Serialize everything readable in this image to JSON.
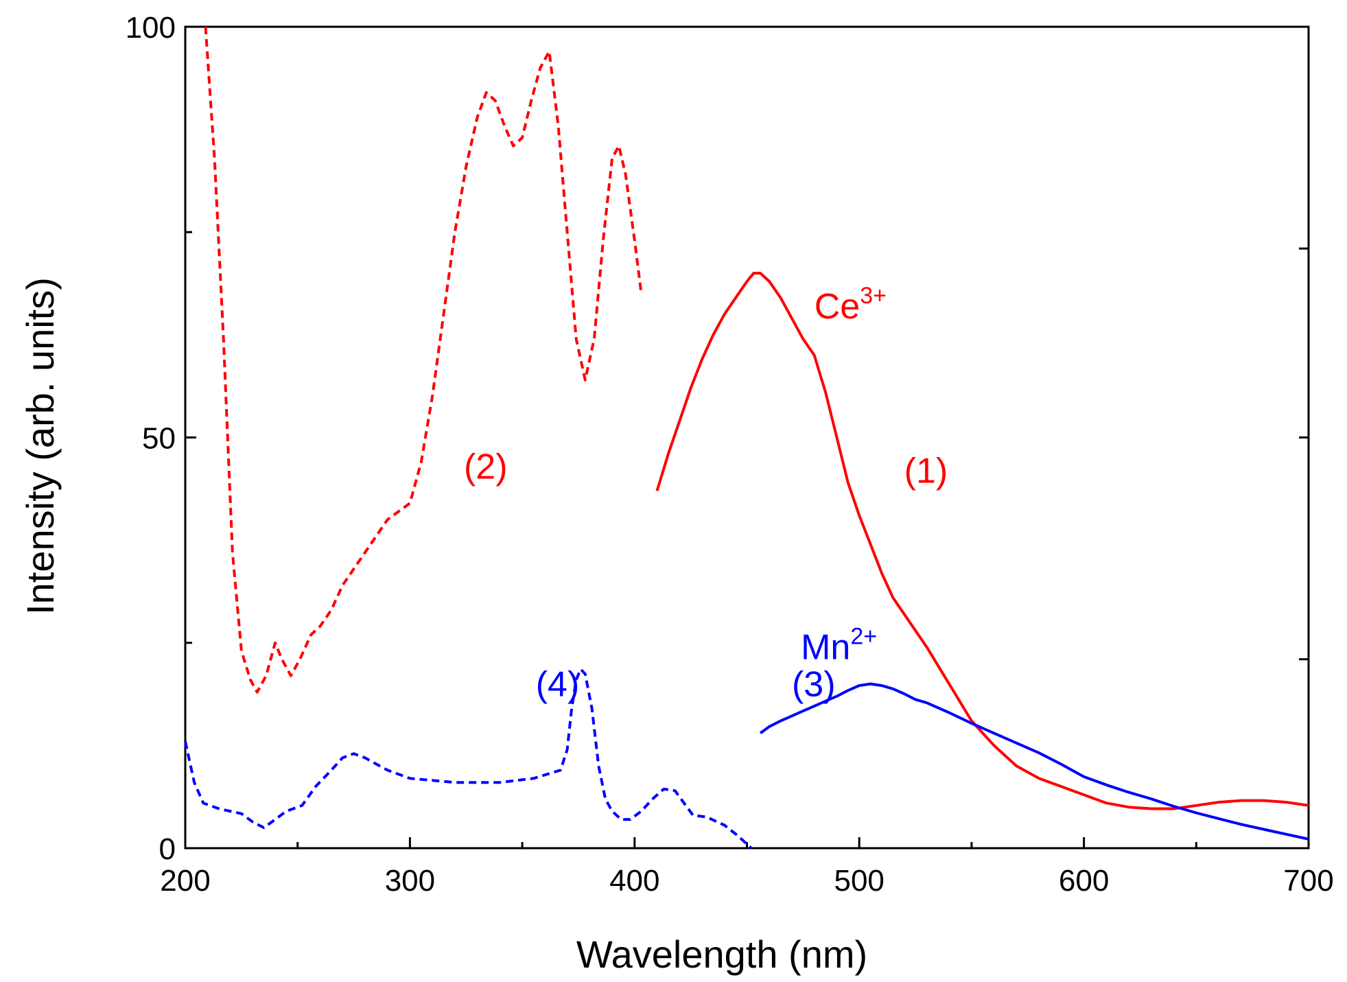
{
  "chart_data": {
    "type": "line",
    "title": "",
    "xlabel": "Wavelength (nm)",
    "ylabel": "Intensity (arb. units)",
    "xlim": [
      200,
      700
    ],
    "ylim": [
      0,
      100
    ],
    "xticks": [
      200,
      300,
      400,
      500,
      600,
      700
    ],
    "xtick_labels": [
      "200",
      "300",
      "400",
      "500",
      "600",
      "700"
    ],
    "yticks": [
      0,
      50,
      100
    ],
    "ytick_labels": [
      "0",
      "50",
      "100"
    ],
    "minor_xticks": [
      250,
      350,
      450,
      550,
      650
    ],
    "minor_yticks": [
      25,
      75
    ],
    "right_axis_ticks": [
      23,
      50,
      73
    ],
    "grid": false,
    "legend": "none",
    "series": [
      {
        "name": "(1)",
        "color": "#ff0000",
        "style": "solid",
        "x": [
          410,
          415,
          420,
          425,
          430,
          435,
          440,
          445,
          450,
          453,
          456,
          460,
          465,
          470,
          475,
          480,
          485,
          490,
          495,
          500,
          505,
          510,
          515,
          520,
          525,
          530,
          540,
          550,
          560,
          570,
          580,
          590,
          600,
          610,
          620,
          630,
          640,
          650,
          660,
          670,
          680,
          690,
          700
        ],
        "y": [
          43.5,
          48,
          52,
          56,
          59.5,
          62.5,
          65,
          67,
          69,
          70,
          70,
          69,
          67,
          64.5,
          62,
          60,
          55.5,
          50,
          44.5,
          40.5,
          37,
          33.5,
          30.5,
          28.5,
          26.5,
          24.5,
          20,
          15.5,
          12.5,
          10,
          8.5,
          7.5,
          6.5,
          5.5,
          5.0,
          4.8,
          4.8,
          5.2,
          5.6,
          5.8,
          5.8,
          5.6,
          5.2
        ]
      },
      {
        "name": "(2)",
        "color": "#ff0000",
        "style": "dashed",
        "x": [
          209,
          213,
          217,
          221,
          225,
          229,
          232,
          236,
          240,
          243,
          247,
          251,
          256,
          260,
          265,
          270,
          280,
          290,
          300,
          305,
          310,
          315,
          320,
          325,
          330,
          334,
          338,
          342,
          346,
          350,
          354,
          358,
          362,
          366,
          370,
          374,
          378,
          382,
          386,
          390,
          393,
          396,
          400,
          403
        ],
        "y": [
          100,
          84,
          62,
          36,
          24,
          20.5,
          19,
          21,
          25,
          23,
          21,
          23,
          26,
          27,
          29,
          32,
          36,
          40,
          42,
          47,
          55,
          65,
          75,
          83,
          89,
          92,
          91,
          88,
          85.5,
          86.5,
          91,
          95,
          97,
          88,
          75,
          62,
          57,
          62,
          74,
          84,
          85.5,
          82,
          74,
          67.5
        ]
      },
      {
        "name": "(3)",
        "color": "#0000ff",
        "style": "solid",
        "x": [
          456,
          460,
          465,
          470,
          475,
          480,
          485,
          490,
          495,
          500,
          505,
          510,
          515,
          520,
          525,
          530,
          540,
          550,
          560,
          570,
          580,
          590,
          600,
          610,
          620,
          630,
          640,
          650,
          660,
          670,
          680,
          690,
          700
        ],
        "y": [
          14,
          14.8,
          15.5,
          16.1,
          16.7,
          17.3,
          17.9,
          18.5,
          19.2,
          19.8,
          20.0,
          19.8,
          19.4,
          18.8,
          18.1,
          17.7,
          16.5,
          15.2,
          14.0,
          12.8,
          11.6,
          10.2,
          8.7,
          7.7,
          6.8,
          6.0,
          5.1,
          4.3,
          3.6,
          2.9,
          2.3,
          1.7,
          1.1
        ]
      },
      {
        "name": "(4)",
        "color": "#0000ff",
        "style": "dashed",
        "x": [
          200,
          204,
          208,
          215,
          225,
          230,
          235,
          240,
          245,
          252,
          258,
          265,
          270,
          275,
          280,
          290,
          300,
          320,
          340,
          355,
          367,
          370,
          372,
          374,
          376,
          378,
          381,
          384,
          387,
          390,
          394,
          398,
          403,
          408,
          413,
          418,
          422,
          426,
          432,
          440,
          446,
          452
        ],
        "y": [
          13,
          8,
          5.5,
          4.8,
          4.2,
          3.2,
          2.5,
          3.5,
          4.5,
          5.2,
          7.5,
          9.5,
          11,
          11.5,
          11,
          9.5,
          8.5,
          8.0,
          8.0,
          8.5,
          9.5,
          12,
          17,
          20.5,
          21.8,
          21.2,
          17,
          10,
          6,
          4.5,
          3.5,
          3.5,
          4.5,
          6,
          7.2,
          7.0,
          5.5,
          4,
          3.8,
          2.8,
          1.5,
          0
        ]
      }
    ],
    "annotations": [
      {
        "text": "(1)",
        "x": 520,
        "y": 44.5,
        "color": "#ff0000"
      },
      {
        "text": "(2)",
        "x": 324,
        "y": 45,
        "color": "#ff0000"
      },
      {
        "text": "(3)",
        "x": 470,
        "y": 18.5,
        "color": "#0000ff"
      },
      {
        "text": "(4)",
        "x": 356,
        "y": 18.5,
        "color": "#0000ff"
      },
      {
        "text": "Ce",
        "sup": "3+",
        "x": 480,
        "y": 64.5,
        "color": "#ff0000"
      },
      {
        "text": "Mn",
        "sup": "2+",
        "x": 474,
        "y": 23,
        "color": "#0000ff"
      }
    ]
  }
}
